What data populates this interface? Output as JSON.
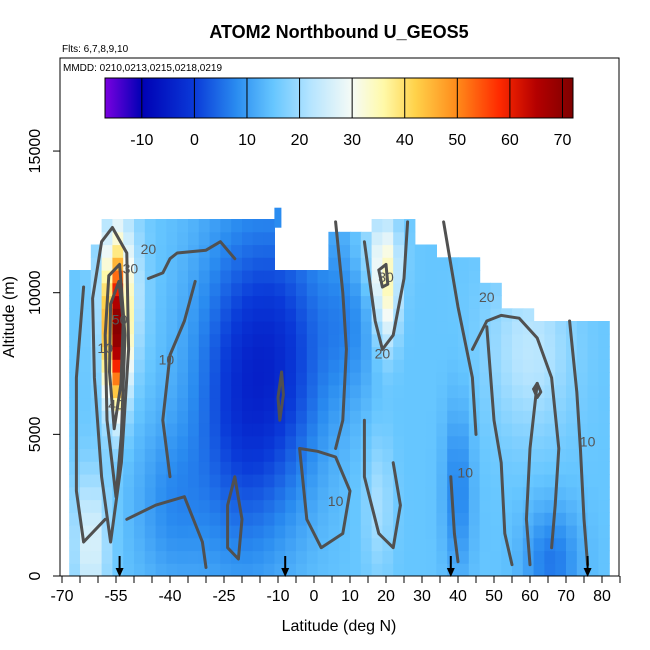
{
  "chart_data": {
    "type": "heatmap",
    "title": "ATOM2 Northbound U_GEOS5",
    "notes": [
      "Flts: 6,7,8,9,10",
      "MMDD: 0210,0213,0215,0218,0219"
    ],
    "xlabel": "Latitude (deg N)",
    "ylabel": "Altitude (m)",
    "xlim": [
      -70,
      85
    ],
    "ylim": [
      0,
      17500
    ],
    "x_ticks": [
      -70,
      -55,
      -40,
      -25,
      -10,
      0,
      10,
      20,
      30,
      40,
      50,
      60,
      70,
      80
    ],
    "x_tick_marks": [
      -70,
      -65,
      -60,
      -55,
      -50,
      -45,
      -40,
      -35,
      -30,
      -25,
      -20,
      -15,
      -10,
      -5,
      0,
      5,
      10,
      15,
      20,
      25,
      30,
      35,
      40,
      45,
      50,
      55,
      60,
      65,
      70,
      75,
      80,
      85
    ],
    "y_ticks": [
      0,
      5000,
      10000,
      15000
    ],
    "colorbar": {
      "range": [
        -17,
        72
      ],
      "ticks": [
        -10,
        0,
        10,
        20,
        30,
        40,
        50,
        60,
        70
      ],
      "colors": [
        "#7a00e0",
        "#0000b4",
        "#0a3ad8",
        "#2a8cf0",
        "#66c6ff",
        "#b4e4ff",
        "#f6fbf6",
        "#fff9a8",
        "#ffd24a",
        "#ff8a1a",
        "#ff2a00",
        "#b40000",
        "#7e0000"
      ],
      "stops": [
        -17,
        -10,
        0,
        8,
        15,
        22,
        30,
        36,
        42,
        50,
        58,
        65,
        72
      ]
    },
    "contour_levels": [
      10,
      20,
      30,
      40,
      50
    ],
    "contour_labels": [
      {
        "text": "50",
        "lat": -54,
        "alt": 9000
      },
      {
        "text": "40",
        "lat": -55,
        "alt": 6000
      },
      {
        "text": "30",
        "lat": -51,
        "alt": 10800
      },
      {
        "text": "20",
        "lat": -46,
        "alt": 11500
      },
      {
        "text": "10",
        "lat": -41,
        "alt": 7600
      },
      {
        "text": "10",
        "lat": -58,
        "alt": 8000
      },
      {
        "text": "20",
        "lat": 19,
        "alt": 7800
      },
      {
        "text": "30",
        "lat": 20,
        "alt": 10500
      },
      {
        "text": "20",
        "lat": 48,
        "alt": 9800
      },
      {
        "text": "10",
        "lat": 76,
        "alt": 4700
      },
      {
        "text": "10",
        "lat": 42,
        "alt": 3600
      },
      {
        "text": "10",
        "lat": 6,
        "alt": 2600
      }
    ],
    "flight_arrows_lat": [
      -54,
      -8,
      38,
      76
    ],
    "data_extent": {
      "lat": [
        -68,
        80
      ],
      "alt": [
        0,
        12500
      ]
    }
  }
}
